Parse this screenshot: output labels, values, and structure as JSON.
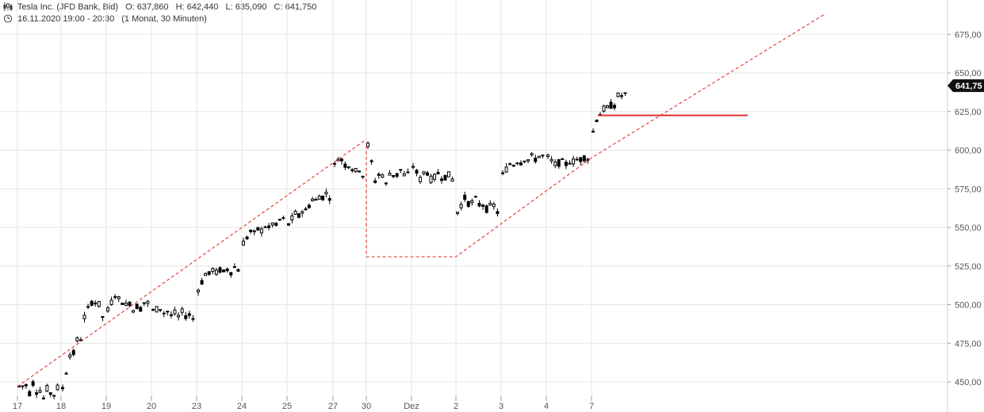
{
  "header": {
    "instrument": "Tesla Inc. (JFD Bank, Bid)",
    "open": "O: 637,860",
    "high": "H: 642,440",
    "low": "L: 635,090",
    "close": "C: 641,750",
    "period": "16.11.2020 19:00 - 20:30",
    "interval": "(1 Monat, 30 Minuten)",
    "instrument_icon": "candlestick-icon",
    "period_icon": "clock-icon"
  },
  "colors": {
    "candle": "#000000",
    "grid": "#e6e6e6",
    "trendline": "#e0443a",
    "support_line": "#e03030",
    "price_tag_bg": "#111111"
  },
  "chart_data": {
    "type": "candlestick",
    "title": "Tesla Inc. (JFD Bank, Bid)",
    "ylim": [
      440,
      690
    ],
    "yticks": [
      "450,00",
      "475,00",
      "500,00",
      "525,00",
      "550,00",
      "575,00",
      "600,00",
      "625,00",
      "650,00",
      "675,00"
    ],
    "ytick_values": [
      450,
      475,
      500,
      525,
      550,
      575,
      600,
      625,
      650,
      675
    ],
    "xticks": [
      "17",
      "18",
      "19",
      "20",
      "23",
      "24",
      "25",
      "27",
      "30",
      "Dez",
      "2",
      "3",
      "4",
      "7"
    ],
    "last_price_label": "641,75",
    "last_price": 641.75,
    "grid": true,
    "sessions": [
      {
        "day": "17",
        "path": [
          [
            447,
            462
          ],
          [
            438,
            448
          ],
          [
            444,
            452
          ],
          [
            437,
            445
          ],
          [
            443,
            450
          ],
          [
            446,
            441
          ]
        ]
      },
      {
        "day": "18",
        "path": [
          [
            446,
            452
          ],
          [
            462,
            470
          ],
          [
            470,
            480
          ],
          [
            495,
            500
          ],
          [
            502,
            506
          ],
          [
            492,
            498
          ]
        ]
      },
      {
        "day": "19",
        "path": [
          [
            496,
            505
          ],
          [
            504,
            508
          ],
          [
            498,
            502
          ],
          [
            496,
            503
          ],
          [
            497,
            501
          ],
          [
            501,
            505
          ]
        ]
      },
      {
        "day": "20",
        "path": [
          [
            496,
            500
          ],
          [
            494,
            498
          ],
          [
            492,
            496
          ],
          [
            491,
            495
          ],
          [
            493,
            497
          ],
          [
            491,
            494
          ]
        ]
      },
      {
        "day": "23",
        "path": [
          [
            510,
            518
          ],
          [
            517,
            521
          ],
          [
            519,
            524
          ],
          [
            520,
            524
          ],
          [
            521,
            525
          ],
          [
            523,
            527
          ]
        ]
      },
      {
        "day": "24",
        "path": [
          [
            540,
            545
          ],
          [
            543,
            548
          ],
          [
            546,
            550
          ],
          [
            548,
            553
          ],
          [
            550,
            555
          ],
          [
            555,
            559
          ]
        ]
      },
      {
        "day": "25",
        "path": [
          [
            552,
            548
          ],
          [
            555,
            560
          ],
          [
            560,
            564
          ],
          [
            565,
            569
          ],
          [
            569,
            572
          ],
          [
            570,
            574
          ]
        ]
      },
      {
        "day": "27",
        "path": [
          [
            590,
            598
          ],
          [
            595,
            598
          ],
          [
            594,
            590
          ],
          [
            589,
            587
          ],
          [
            587,
            585
          ],
          [
            584,
            590
          ]
        ]
      },
      {
        "day": "30",
        "path": [
          [
            603,
            595
          ],
          [
            584,
            578
          ],
          [
            573,
            584
          ],
          [
            584,
            590
          ],
          [
            588,
            584
          ],
          [
            584,
            580
          ]
        ]
      },
      {
        "day": "Dez",
        "path": [
          [
            590,
            585
          ],
          [
            585,
            580
          ],
          [
            580,
            586
          ],
          [
            586,
            583
          ],
          [
            583,
            581
          ],
          [
            581,
            584
          ]
        ]
      },
      {
        "day": "2",
        "path": [
          [
            560,
            566
          ],
          [
            566,
            570
          ],
          [
            570,
            566
          ],
          [
            566,
            563
          ],
          [
            563,
            560
          ],
          [
            560,
            565
          ]
        ]
      },
      {
        "day": "3",
        "path": [
          [
            584,
            590
          ],
          [
            589,
            592
          ],
          [
            591,
            594
          ],
          [
            593,
            596
          ],
          [
            594,
            597
          ],
          [
            596,
            598
          ]
        ]
      },
      {
        "day": "4",
        "path": [
          [
            595,
            592
          ],
          [
            592,
            590
          ],
          [
            590,
            592
          ],
          [
            592,
            594
          ],
          [
            594,
            595
          ],
          [
            595,
            597
          ]
        ]
      },
      {
        "day": "7",
        "path": [
          [
            612,
            620
          ],
          [
            623,
            627
          ],
          [
            626,
            628
          ],
          [
            626,
            630
          ],
          [
            630,
            636
          ],
          [
            636,
            641.75
          ]
        ]
      }
    ],
    "annotations": [
      {
        "type": "trendline",
        "style": "dashed",
        "points": [
          [
            "17",
            447
          ],
          [
            "30",
            607
          ]
        ]
      },
      {
        "type": "polyline",
        "style": "dashed",
        "points": [
          [
            "30",
            603
          ],
          [
            "30",
            531
          ],
          [
            "2",
            531
          ],
          [
            "7",
            595
          ],
          [
            "7+",
            688
          ]
        ]
      },
      {
        "type": "horizontal",
        "style": "solid",
        "value": 622.5,
        "from": "7",
        "to": "7++"
      }
    ]
  }
}
